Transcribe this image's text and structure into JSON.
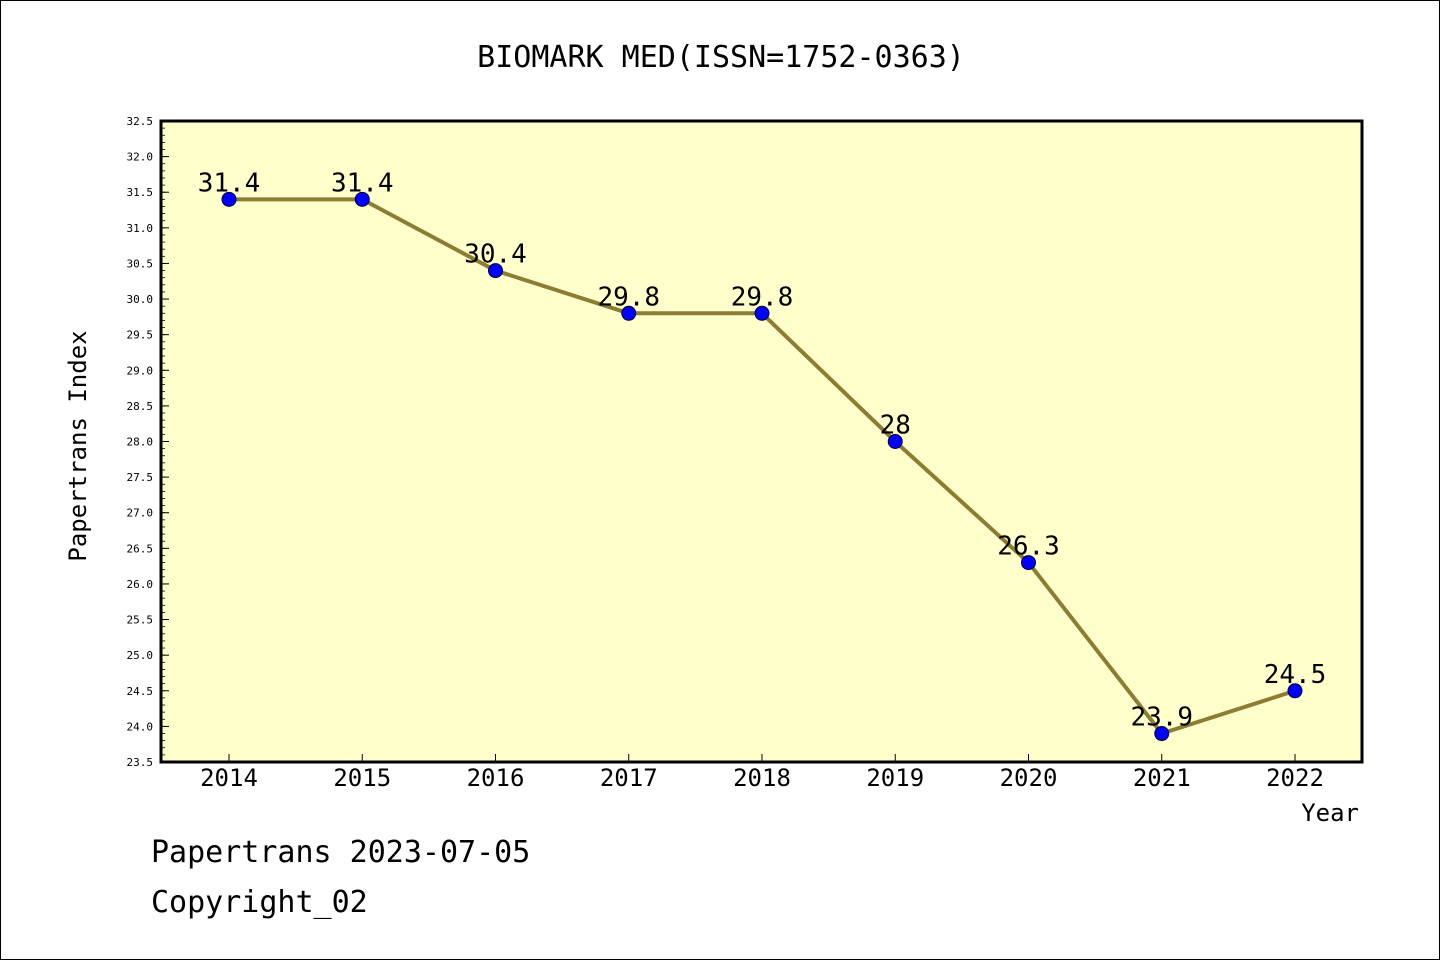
{
  "chart_data": {
    "type": "line",
    "title": "BIOMARK MED(ISSN=1752-0363)",
    "xlabel": "Year",
    "ylabel": "Papertrans Index",
    "x": [
      "2014",
      "2015",
      "2016",
      "2017",
      "2018",
      "2019",
      "2020",
      "2021",
      "2022"
    ],
    "series": [
      {
        "values": [
          31.4,
          31.4,
          30.4,
          29.8,
          29.8,
          28.0,
          26.3,
          23.9,
          24.5
        ],
        "point_labels": [
          "31.4",
          "31.4",
          "30.4",
          "29.8",
          "29.8",
          "28",
          "26.3",
          "23.9",
          "24.5"
        ]
      }
    ],
    "ylim": [
      23.5,
      32.5
    ],
    "yticks": [
      "23.5",
      "24.0",
      "24.5",
      "25.0",
      "25.5",
      "26.0",
      "26.5",
      "27.0",
      "27.5",
      "28.0",
      "28.5",
      "29.0",
      "29.5",
      "30.0",
      "30.5",
      "31.0",
      "31.5",
      "32.0",
      "32.5"
    ],
    "grid": false,
    "colors": {
      "plot_background": "#ffffcc",
      "line": "#8b7d32",
      "marker": "#0000ff"
    }
  },
  "footer": {
    "line1": "Papertrans 2023-07-05",
    "line2": "Copyright_02"
  }
}
